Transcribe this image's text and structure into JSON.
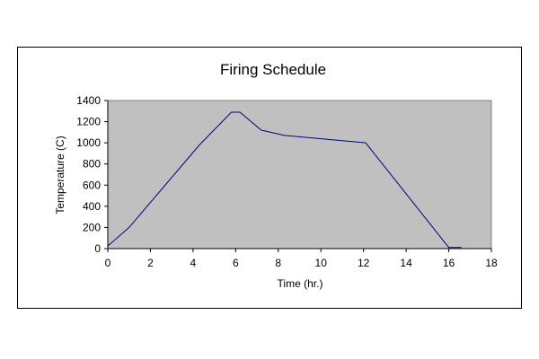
{
  "chart_data": {
    "type": "line",
    "title": "Firing Schedule",
    "xlabel": "Time (hr.)",
    "ylabel": "Temperature (C)",
    "xlim": [
      0,
      18
    ],
    "ylim": [
      0,
      1400
    ],
    "xticks": [
      0,
      2,
      4,
      6,
      8,
      10,
      12,
      14,
      16,
      18
    ],
    "yticks": [
      0,
      200,
      400,
      600,
      800,
      1000,
      1200,
      1400
    ],
    "grid": false,
    "legend": "none",
    "colors": {
      "plot_background": "#c0c0c0",
      "line": "#000080"
    },
    "series": [
      {
        "x": [
          0,
          1,
          4.3,
          5.8,
          6.2,
          7.2,
          8.3,
          12.1,
          16,
          16.6
        ],
        "y": [
          25,
          200,
          980,
          1290,
          1290,
          1120,
          1070,
          1000,
          10,
          10
        ]
      }
    ]
  }
}
